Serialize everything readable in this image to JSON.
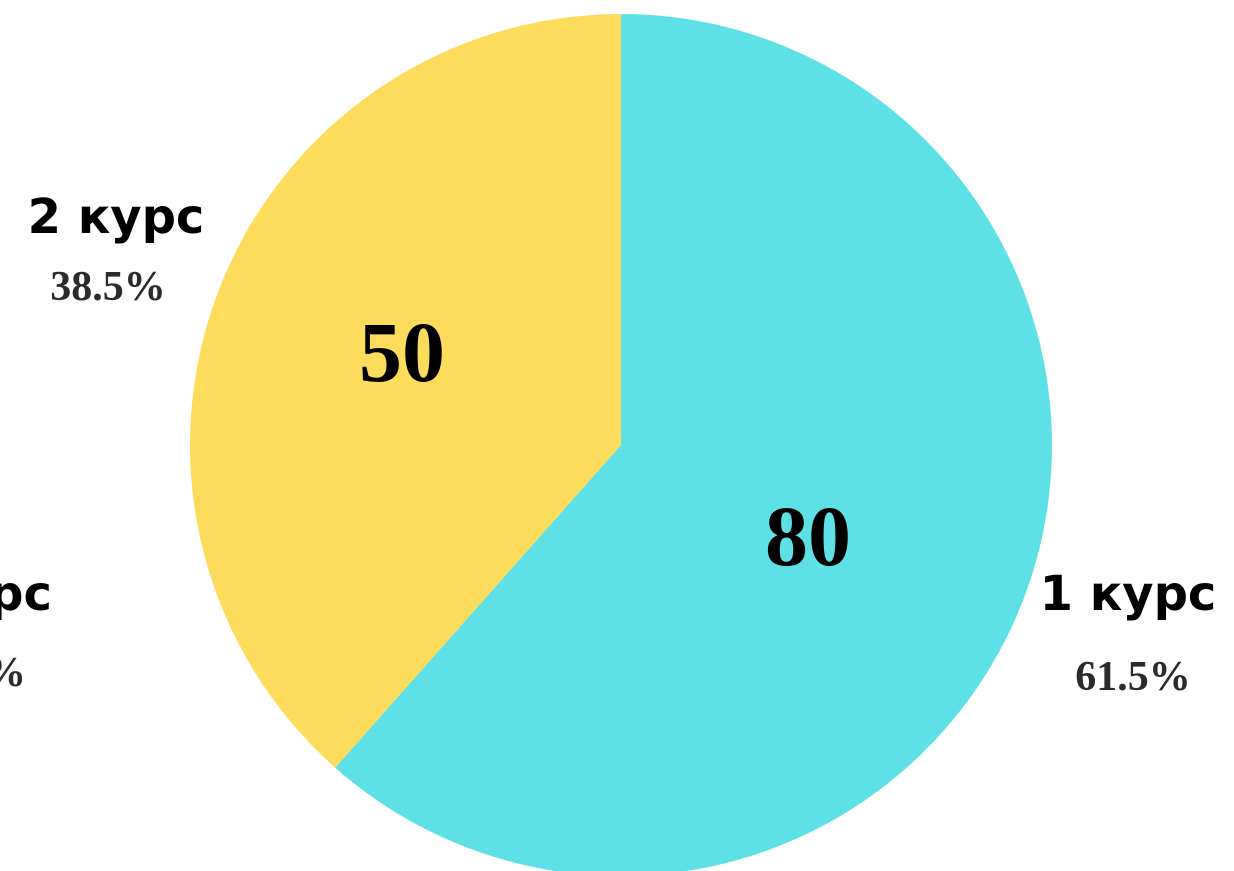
{
  "chart_data": {
    "type": "pie",
    "categories": [
      "1 курс",
      "2 курс"
    ],
    "values": [
      80,
      50
    ],
    "value_labels": [
      "80",
      "50"
    ],
    "percent_labels": [
      "61.5%",
      "38.5%"
    ],
    "colors": [
      "#5EE1E6",
      "#FDDC5C"
    ],
    "start": "top",
    "direction": "clockwise",
    "partial_edge_labels": [
      {
        "category": "ypc",
        "percent": "%"
      }
    ]
  }
}
